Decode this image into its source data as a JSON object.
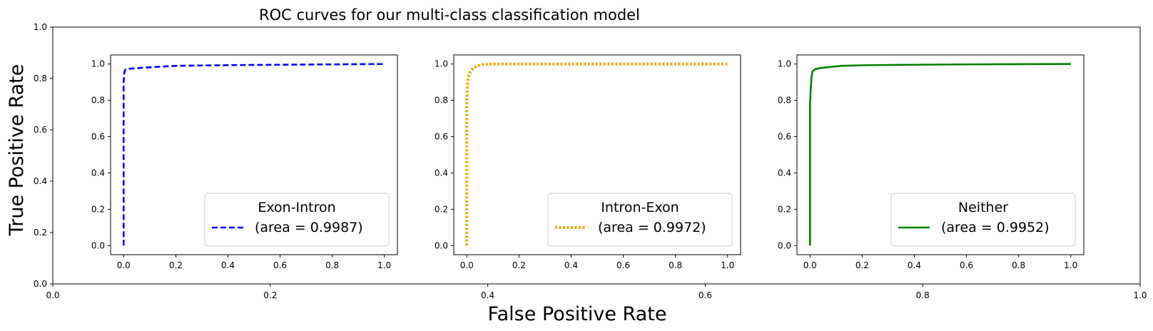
{
  "title": "ROC curves for our multi-class classification model",
  "xlabel": "False Positive Rate",
  "ylabel": "True Positive Rate",
  "background_axes": {
    "xlim": [
      0,
      1
    ],
    "ylim": [
      0,
      1
    ],
    "xticks": [
      "0.0",
      "0.2",
      "0.4",
      "0.6",
      "0.8",
      "1.0"
    ],
    "yticks": [
      "0.0",
      "0.2",
      "0.4",
      "0.6",
      "0.8",
      "1.0"
    ]
  },
  "chart_data": [
    {
      "type": "line",
      "xlim": [
        -0.05,
        1.05
      ],
      "ylim": [
        -0.05,
        1.05
      ],
      "xticks": [
        "0.0",
        "0.2",
        "0.4",
        "0.6",
        "0.8",
        "1.0"
      ],
      "yticks": [
        "0.0",
        "0.2",
        "0.4",
        "0.6",
        "0.8",
        "1.0"
      ],
      "legend_title": "Exon-Intron",
      "legend_position": "bottom-right",
      "series": [
        {
          "name": "(area = 0.9987)",
          "color": "#0000ff",
          "style": "dashed",
          "x": [
            0.0,
            0.0,
            0.003,
            0.006,
            0.01,
            0.03,
            0.06,
            0.1,
            0.15,
            0.2,
            0.3,
            0.5,
            0.7,
            1.0
          ],
          "y": [
            0.0,
            0.9,
            0.955,
            0.968,
            0.972,
            0.975,
            0.978,
            0.982,
            0.986,
            0.99,
            0.992,
            0.995,
            0.997,
            1.0
          ]
        }
      ]
    },
    {
      "type": "line",
      "xlim": [
        -0.05,
        1.05
      ],
      "ylim": [
        -0.05,
        1.05
      ],
      "xticks": [
        "0.0",
        "0.2",
        "0.4",
        "0.6",
        "0.8",
        "1.0"
      ],
      "yticks": [
        "0.0",
        "0.2",
        "0.4",
        "0.6",
        "0.8",
        "1.0"
      ],
      "legend_title": "Intron-Exon",
      "legend_position": "bottom-right",
      "series": [
        {
          "name": "(area = 0.9972)",
          "color": "#ffa500",
          "style": "dotted",
          "x": [
            0.0,
            0.0,
            0.003,
            0.008,
            0.015,
            0.025,
            0.04,
            0.06,
            0.1,
            0.2,
            0.4,
            0.7,
            1.0
          ],
          "y": [
            0.0,
            0.8,
            0.9,
            0.94,
            0.962,
            0.978,
            0.99,
            0.997,
            1.0,
            1.0,
            1.0,
            1.0,
            1.0
          ]
        }
      ]
    },
    {
      "type": "line",
      "xlim": [
        -0.05,
        1.05
      ],
      "ylim": [
        -0.05,
        1.05
      ],
      "xticks": [
        "0.0",
        "0.2",
        "0.4",
        "0.6",
        "0.8",
        "1.0"
      ],
      "yticks": [
        "0.0",
        "0.2",
        "0.4",
        "0.6",
        "0.8",
        "1.0"
      ],
      "legend_title": "Neither",
      "legend_position": "bottom-right",
      "series": [
        {
          "name": "(area = 0.9952)",
          "color": "#008000",
          "style": "solid",
          "x": [
            0.0,
            0.0,
            0.003,
            0.006,
            0.01,
            0.02,
            0.04,
            0.08,
            0.12,
            0.2,
            0.4,
            0.6,
            0.8,
            1.0
          ],
          "y": [
            0.0,
            0.78,
            0.87,
            0.93,
            0.96,
            0.972,
            0.978,
            0.984,
            0.99,
            0.993,
            0.996,
            0.998,
            0.999,
            1.0
          ]
        }
      ]
    }
  ]
}
